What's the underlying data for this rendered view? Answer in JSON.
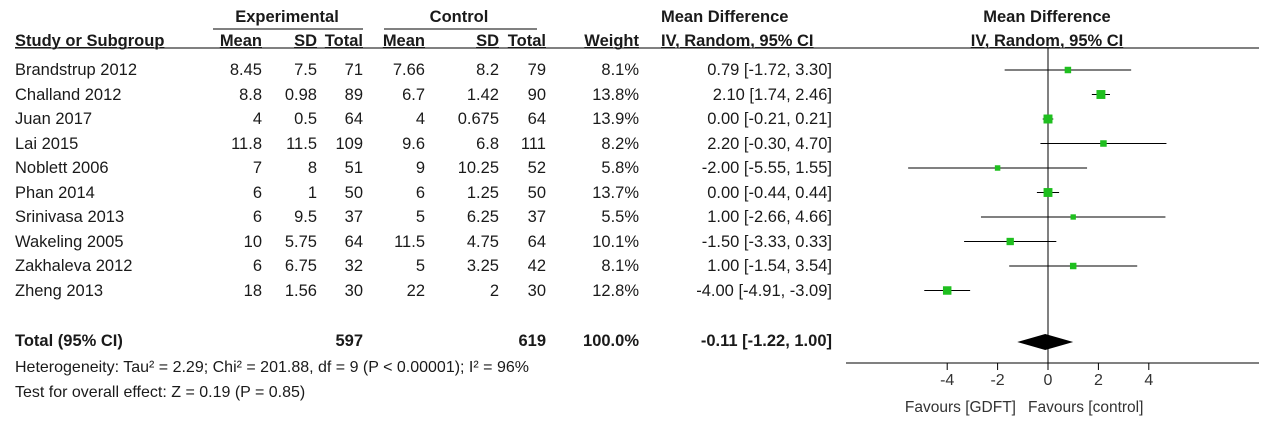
{
  "header": {
    "group_experimental": "Experimental",
    "group_control": "Control",
    "md_top": "Mean Difference",
    "plot_md_top": "Mean Difference",
    "study_col": "Study or Subgroup",
    "mean": "Mean",
    "sd": "SD",
    "total": "Total",
    "weight": "Weight",
    "md_method": "IV, Random, 95% CI",
    "plot_md_method": "IV, Random, 95% CI"
  },
  "studies": [
    {
      "name": "Brandstrup  2012",
      "e_mean": "8.45",
      "e_sd": "7.5",
      "e_total": "71",
      "c_mean": "7.66",
      "c_sd": "8.2",
      "c_total": "79",
      "weight": "8.1%",
      "ci_text": "0.79 [-1.72, 3.30]"
    },
    {
      "name": "Challand  2012",
      "e_mean": "8.8",
      "e_sd": "0.98",
      "e_total": "89",
      "c_mean": "6.7",
      "c_sd": "1.42",
      "c_total": "90",
      "weight": "13.8%",
      "ci_text": "2.10 [1.74, 2.46]"
    },
    {
      "name": "Juan  2017",
      "e_mean": "4",
      "e_sd": "0.5",
      "e_total": "64",
      "c_mean": "4",
      "c_sd": "0.675",
      "c_total": "64",
      "weight": "13.9%",
      "ci_text": "0.00 [-0.21, 0.21]"
    },
    {
      "name": "Lai  2015",
      "e_mean": "11.8",
      "e_sd": "11.5",
      "e_total": "109",
      "c_mean": "9.6",
      "c_sd": "6.8",
      "c_total": "111",
      "weight": "8.2%",
      "ci_text": "2.20 [-0.30, 4.70]"
    },
    {
      "name": "Noblett  2006",
      "e_mean": "7",
      "e_sd": "8",
      "e_total": "51",
      "c_mean": "9",
      "c_sd": "10.25",
      "c_total": "52",
      "weight": "5.8%",
      "ci_text": "-2.00 [-5.55, 1.55]"
    },
    {
      "name": "Phan  2014",
      "e_mean": "6",
      "e_sd": "1",
      "e_total": "50",
      "c_mean": "6",
      "c_sd": "1.25",
      "c_total": "50",
      "weight": "13.7%",
      "ci_text": "0.00 [-0.44, 0.44]"
    },
    {
      "name": "Srinivasa  2013",
      "e_mean": "6",
      "e_sd": "9.5",
      "e_total": "37",
      "c_mean": "5",
      "c_sd": "6.25",
      "c_total": "37",
      "weight": "5.5%",
      "ci_text": "1.00 [-2.66, 4.66]"
    },
    {
      "name": "Wakeling  2005",
      "e_mean": "10",
      "e_sd": "5.75",
      "e_total": "64",
      "c_mean": "11.5",
      "c_sd": "4.75",
      "c_total": "64",
      "weight": "10.1%",
      "ci_text": "-1.50 [-3.33, 0.33]"
    },
    {
      "name": "Zakhaleva  2012",
      "e_mean": "6",
      "e_sd": "6.75",
      "e_total": "32",
      "c_mean": "5",
      "c_sd": "3.25",
      "c_total": "42",
      "weight": "8.1%",
      "ci_text": "1.00 [-1.54, 3.54]"
    },
    {
      "name": "Zheng  2013",
      "e_mean": "18",
      "e_sd": "1.56",
      "e_total": "30",
      "c_mean": "22",
      "c_sd": "2",
      "c_total": "30",
      "weight": "12.8%",
      "ci_text": "-4.00 [-4.91, -3.09]"
    }
  ],
  "total": {
    "label": "Total (95% CI)",
    "e_total": "597",
    "c_total": "619",
    "weight": "100.0%",
    "ci_text": "-0.11 [-1.22, 1.00]"
  },
  "heterogeneity": "Heterogeneity: Tau² = 2.29; Chi² = 201.88, df = 9 (P < 0.00001); I² = 96%",
  "overall_effect": "Test for overall effect: Z = 0.19 (P = 0.85)",
  "favours_left": "Favours [GDFT]",
  "favours_right": "Favours [control]",
  "colors": {
    "marker": "#1fbf1f",
    "diamond": "#000000",
    "line": "#000000"
  },
  "chart_data": {
    "type": "forest",
    "title": "",
    "xlabel": "",
    "xlim": [
      -6,
      6
    ],
    "ticks": [
      -4,
      -2,
      0,
      2,
      4
    ],
    "tick_labels": [
      "-4",
      "-2",
      "0",
      "2",
      "4"
    ],
    "points": [
      {
        "study": "Brandstrup  2012",
        "md": 0.79,
        "lo": -1.72,
        "hi": 3.3,
        "weight": 8.1
      },
      {
        "study": "Challand  2012",
        "md": 2.1,
        "lo": 1.74,
        "hi": 2.46,
        "weight": 13.8
      },
      {
        "study": "Juan  2017",
        "md": 0.0,
        "lo": -0.21,
        "hi": 0.21,
        "weight": 13.9
      },
      {
        "study": "Lai  2015",
        "md": 2.2,
        "lo": -0.3,
        "hi": 4.7,
        "weight": 8.2
      },
      {
        "study": "Noblett  2006",
        "md": -2.0,
        "lo": -5.55,
        "hi": 1.55,
        "weight": 5.8
      },
      {
        "study": "Phan  2014",
        "md": 0.0,
        "lo": -0.44,
        "hi": 0.44,
        "weight": 13.7
      },
      {
        "study": "Srinivasa  2013",
        "md": 1.0,
        "lo": -2.66,
        "hi": 4.66,
        "weight": 5.5
      },
      {
        "study": "Wakeling  2005",
        "md": -1.5,
        "lo": -3.33,
        "hi": 0.33,
        "weight": 10.1
      },
      {
        "study": "Zakhaleva  2012",
        "md": 1.0,
        "lo": -1.54,
        "hi": 3.54,
        "weight": 8.1
      },
      {
        "study": "Zheng  2013",
        "md": -4.0,
        "lo": -4.91,
        "hi": -3.09,
        "weight": 12.8
      }
    ],
    "pooled": {
      "md": -0.11,
      "lo": -1.22,
      "hi": 1.0
    }
  }
}
